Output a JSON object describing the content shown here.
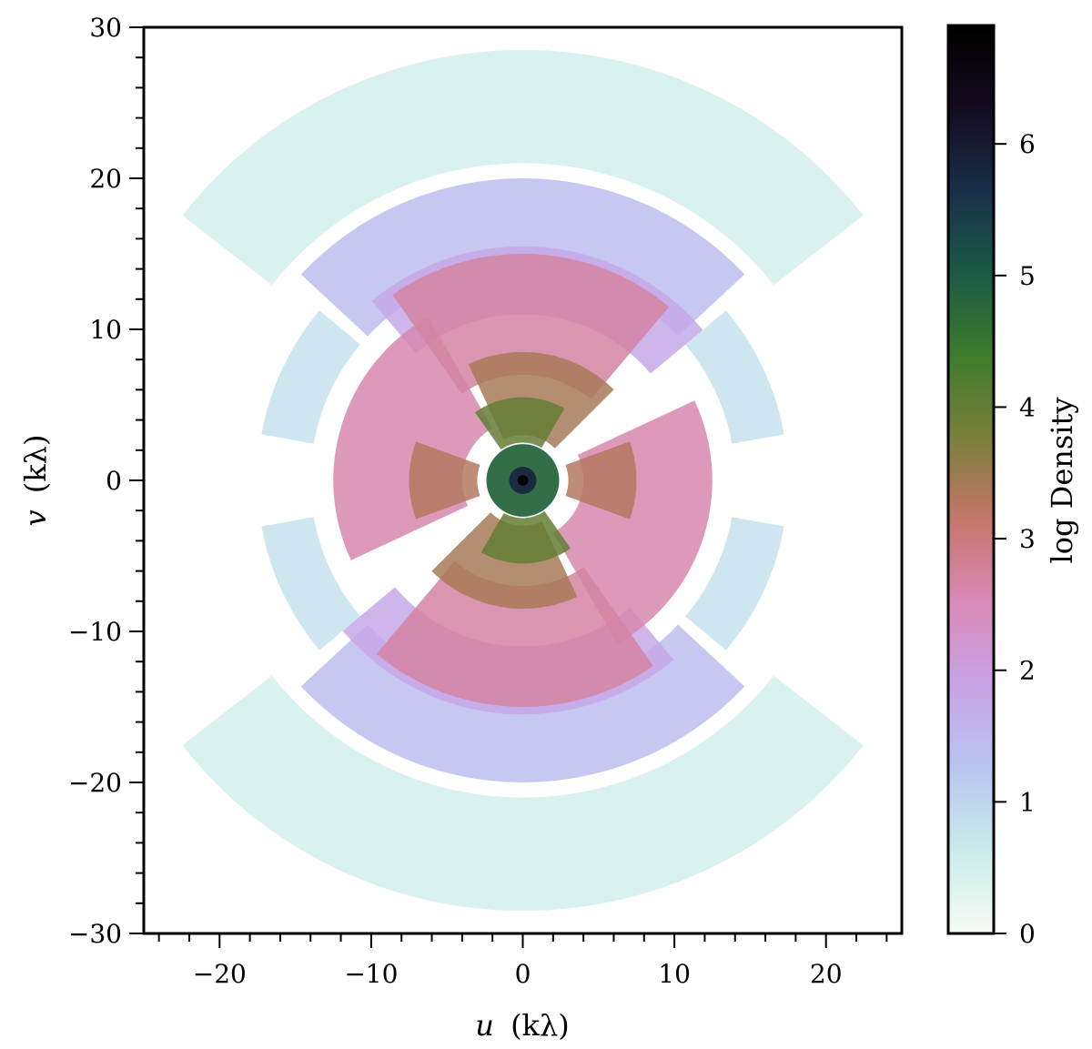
{
  "chart_data": {
    "type": "heatmap",
    "title": "",
    "xlabel": {
      "var": "u",
      "unit": "(kλ)"
    },
    "ylabel": {
      "var": "v",
      "unit": "(kλ)"
    },
    "xlim": [
      -25,
      25
    ],
    "ylim": [
      -30,
      30
    ],
    "x_ticks": [
      -20,
      -10,
      0,
      10,
      20
    ],
    "x_tick_labels": [
      "−20",
      "−10",
      "0",
      "10",
      "20"
    ],
    "y_ticks": [
      -30,
      -20,
      -10,
      0,
      10,
      20,
      30
    ],
    "y_tick_labels": [
      "−30",
      "−20",
      "−10",
      "0",
      "10",
      "20",
      "30"
    ],
    "grid": false,
    "colorbar": {
      "label": "log Density",
      "range": [
        0,
        6.9
      ],
      "ticks": [
        0,
        1,
        2,
        3,
        4,
        5,
        6
      ],
      "tick_labels": [
        "0",
        "1",
        "2",
        "3",
        "4",
        "5",
        "6"
      ],
      "colormap": [
        "#f7fcf5",
        "#c9ecea",
        "#b9c6f0",
        "#c8a3e6",
        "#d98ab9",
        "#c7766c",
        "#7a7f3a",
        "#3e7c2c",
        "#1b5a46",
        "#1a2f4a",
        "#140b1e",
        "#000000"
      ]
    },
    "sectors": [
      {
        "name": "outer-top",
        "r": [
          21,
          28.5
        ],
        "a_from": 38,
        "a_to": 142,
        "log_density": 0.5
      },
      {
        "name": "outer-bottom",
        "r": [
          21,
          28.5
        ],
        "a_from": 218,
        "a_to": 322,
        "log_density": 0.5
      },
      {
        "name": "side-right-upper",
        "r": [
          14,
          17.5
        ],
        "a_from": 10,
        "a_to": 40,
        "log_density": 0.8
      },
      {
        "name": "side-left-upper",
        "r": [
          14,
          17.5
        ],
        "a_from": 140,
        "a_to": 170,
        "log_density": 0.8
      },
      {
        "name": "side-left-lower",
        "r": [
          14,
          17.5
        ],
        "a_from": 190,
        "a_to": 220,
        "log_density": 0.8
      },
      {
        "name": "side-right-lower",
        "r": [
          14,
          17.5
        ],
        "a_from": 320,
        "a_to": 350,
        "log_density": 0.8
      },
      {
        "name": "band-top",
        "r": [
          14,
          20
        ],
        "a_from": 43,
        "a_to": 137,
        "log_density": 1.4
      },
      {
        "name": "band-bottom",
        "r": [
          14,
          20
        ],
        "a_from": 223,
        "a_to": 317,
        "log_density": 1.4
      },
      {
        "name": "band-top-inner",
        "r": [
          11,
          15.5
        ],
        "a_from": 40,
        "a_to": 130,
        "log_density": 1.8
      },
      {
        "name": "band-bottom-inner",
        "r": [
          11,
          15.5
        ],
        "a_from": 220,
        "a_to": 310,
        "log_density": 1.8
      },
      {
        "name": "swirl-left",
        "r": [
          4,
          12.5
        ],
        "a_from": 120,
        "a_to": 205,
        "log_density": 2.6
      },
      {
        "name": "swirl-right",
        "r": [
          4,
          12.5
        ],
        "a_from": 300,
        "a_to": 385,
        "log_density": 2.6
      },
      {
        "name": "mid-top",
        "r": [
          7,
          15
        ],
        "a_from": 50,
        "a_to": 125,
        "log_density": 2.7
      },
      {
        "name": "mid-bottom",
        "r": [
          7,
          15
        ],
        "a_from": 230,
        "a_to": 305,
        "log_density": 2.7
      },
      {
        "name": "lobe-upper-right",
        "r": [
          3,
          8.5
        ],
        "a_from": 45,
        "a_to": 115,
        "log_density": 3.4
      },
      {
        "name": "lobe-lower-left",
        "r": [
          3,
          8.5
        ],
        "a_from": 225,
        "a_to": 295,
        "log_density": 3.4
      },
      {
        "name": "lobe-right",
        "r": [
          3,
          7.5
        ],
        "a_from": -20,
        "a_to": 20,
        "log_density": 3.3
      },
      {
        "name": "lobe-left",
        "r": [
          3,
          7.5
        ],
        "a_from": 160,
        "a_to": 200,
        "log_density": 3.3
      },
      {
        "name": "core-ring-top",
        "r": [
          2.5,
          5.5
        ],
        "a_from": 60,
        "a_to": 125,
        "log_density": 4.0
      },
      {
        "name": "core-ring-bottom",
        "r": [
          2.5,
          5.5
        ],
        "a_from": 240,
        "a_to": 305,
        "log_density": 4.0
      },
      {
        "name": "core-disc",
        "r": [
          0,
          2.4
        ],
        "a_from": 0,
        "a_to": 360,
        "log_density": 4.8
      },
      {
        "name": "core-peak",
        "r": [
          0,
          0.9
        ],
        "a_from": 0,
        "a_to": 360,
        "log_density": 5.8
      },
      {
        "name": "core-max",
        "r": [
          0,
          0.35
        ],
        "a_from": 0,
        "a_to": 360,
        "log_density": 6.8
      }
    ]
  }
}
